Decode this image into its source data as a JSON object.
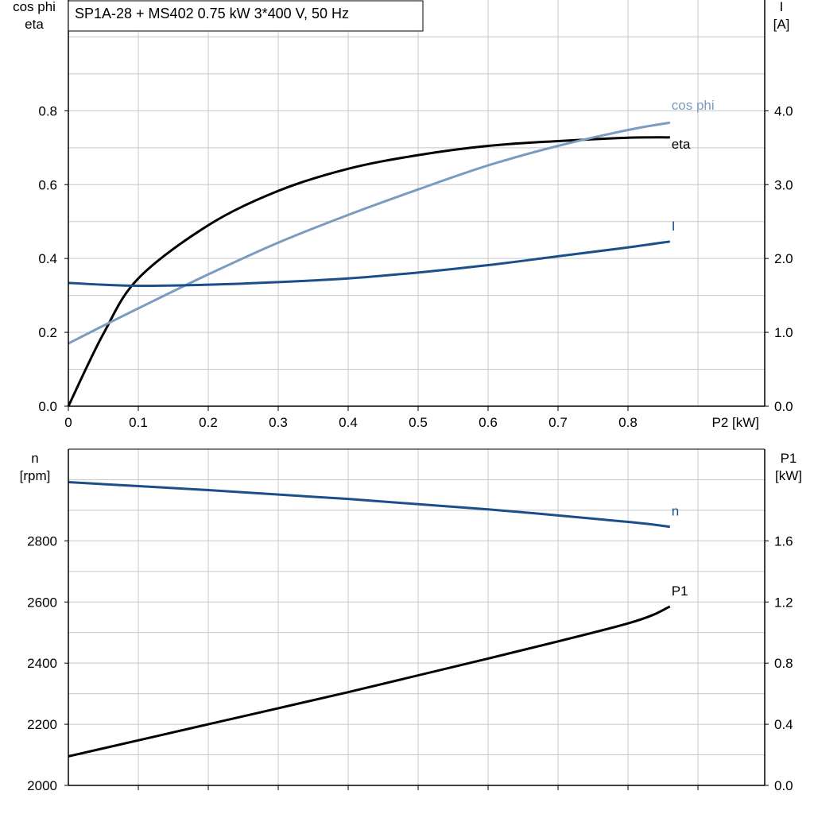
{
  "title": "SP1A-28 + MS402   0.75 kW   3*400 V, 50 Hz",
  "colors": {
    "eta": "#000000",
    "cos_phi": "#7a9cbf",
    "I": "#1a4f8a",
    "n": "#1a4f8a",
    "P1": "#000000",
    "grid": "#c8c8c8"
  },
  "chart_data": [
    {
      "type": "line",
      "xlabel": "P2 [kW]",
      "ylabel_left": [
        "cos phi",
        "eta"
      ],
      "ylabel_right": [
        "I",
        "[A]"
      ],
      "xlim": [
        0,
        1.0
      ],
      "ylim_left": [
        0,
        1.1
      ],
      "ylim_right": [
        0,
        5.5
      ],
      "x_ticks": [
        "0",
        "0.1",
        "0.2",
        "0.3",
        "0.4",
        "0.5",
        "0.6",
        "0.7",
        "0.8"
      ],
      "y_ticks_left": [
        "0.0",
        "0.2",
        "0.4",
        "0.6",
        "0.8"
      ],
      "y_ticks_right": [
        "0.0",
        "1.0",
        "2.0",
        "3.0",
        "4.0"
      ],
      "grid": true,
      "x": [
        0,
        0.05,
        0.1,
        0.2,
        0.3,
        0.4,
        0.5,
        0.6,
        0.7,
        0.8,
        0.86
      ],
      "series": [
        {
          "name": "eta",
          "axis": "left",
          "values": [
            0,
            0.196,
            0.346,
            0.49,
            0.583,
            0.643,
            0.68,
            0.705,
            0.718,
            0.727,
            0.728
          ]
        },
        {
          "name": "cos phi",
          "axis": "left",
          "values": [
            0.17,
            0.218,
            0.265,
            0.357,
            0.443,
            0.518,
            0.587,
            0.652,
            0.705,
            0.748,
            0.768
          ]
        },
        {
          "name": "I",
          "axis": "right",
          "values": [
            1.67,
            1.645,
            1.63,
            1.645,
            1.68,
            1.73,
            1.81,
            1.91,
            2.03,
            2.15,
            2.23
          ]
        }
      ]
    },
    {
      "type": "line",
      "ylabel_left": [
        "n",
        "[rpm]"
      ],
      "ylabel_right": [
        "P1",
        "[kW]"
      ],
      "xlim": [
        0,
        1.0
      ],
      "ylim_left": [
        2000,
        3100
      ],
      "ylim_right": [
        0,
        2.2
      ],
      "y_ticks_left": [
        "2000",
        "2200",
        "2400",
        "2600",
        "2800"
      ],
      "y_ticks_right": [
        "0.0",
        "0.4",
        "0.8",
        "1.2",
        "1.6"
      ],
      "grid": true,
      "x": [
        0,
        0.2,
        0.4,
        0.6,
        0.8,
        0.86
      ],
      "series": [
        {
          "name": "n",
          "axis": "left",
          "values": [
            2992,
            2966,
            2937,
            2903,
            2862,
            2846
          ]
        },
        {
          "name": "P1",
          "axis": "right",
          "values": [
            0.19,
            0.4,
            0.61,
            0.83,
            1.06,
            1.17
          ]
        }
      ]
    }
  ]
}
